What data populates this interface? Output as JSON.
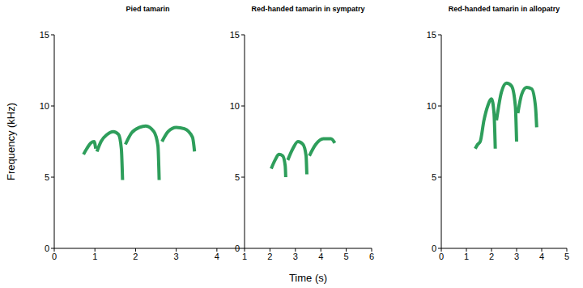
{
  "chart_data": [
    {
      "type": "line",
      "title": "Pied tamarin",
      "y_label": "Frequency (kHz)",
      "xlim": [
        0,
        4.6
      ],
      "xticks": [
        0,
        1,
        2,
        3,
        4
      ],
      "ylim": [
        0,
        15
      ],
      "yticks": [
        0,
        5,
        10,
        15
      ],
      "color": "#2e9e5b",
      "x": [
        0.72,
        0.8,
        0.9,
        0.98,
        1.02,
        1.035,
        1.05,
        1.15,
        1.3,
        1.45,
        1.58,
        1.65,
        1.68,
        1.71,
        1.75,
        1.9,
        2.1,
        2.25,
        2.45,
        2.55,
        2.58,
        2.61,
        2.65,
        2.8,
        3.0,
        3.2,
        3.4,
        3.45
      ],
      "values": [
        6.6,
        7.0,
        7.4,
        7.5,
        7.0,
        null,
        6.8,
        7.5,
        8.0,
        8.2,
        8.0,
        7.0,
        4.8,
        null,
        7.3,
        8.1,
        8.5,
        8.6,
        8.2,
        7.2,
        4.8,
        null,
        7.5,
        8.2,
        8.5,
        8.4,
        7.8,
        6.8
      ]
    },
    {
      "type": "line",
      "title": "Red-handed tamarin in sympatry",
      "x_label": "Time (s)",
      "xlim": [
        1,
        6
      ],
      "xticks": [
        1,
        2,
        3,
        4,
        5,
        6
      ],
      "ylim": [
        0,
        15
      ],
      "yticks": [
        0,
        5,
        10,
        15
      ],
      "color": "#2e9e5b",
      "x": [
        2.05,
        2.2,
        2.35,
        2.5,
        2.6,
        2.62,
        2.66,
        2.7,
        2.9,
        3.1,
        3.3,
        3.42,
        3.45,
        3.5,
        3.55,
        3.8,
        4.1,
        4.4,
        4.55
      ],
      "values": [
        5.6,
        6.2,
        6.6,
        6.5,
        5.8,
        5.0,
        null,
        6.2,
        7.0,
        7.5,
        7.3,
        6.5,
        5.2,
        null,
        6.5,
        7.3,
        7.7,
        7.7,
        7.4
      ]
    },
    {
      "type": "line",
      "title": "Red-handed tamarin in allopatry",
      "xlim": [
        0,
        5
      ],
      "xticks": [
        0,
        1,
        2,
        3,
        4,
        5
      ],
      "ylim": [
        0,
        15
      ],
      "yticks": [
        0,
        5,
        10,
        15
      ],
      "color": "#2e9e5b",
      "x": [
        1.35,
        1.45,
        1.55,
        1.7,
        1.85,
        2.0,
        2.1,
        2.15,
        2.18,
        2.2,
        2.4,
        2.6,
        2.8,
        2.95,
        3.0,
        3.02,
        3.05,
        3.2,
        3.4,
        3.6,
        3.75,
        3.8
      ],
      "values": [
        7.0,
        7.3,
        7.5,
        9.0,
        10.0,
        10.5,
        9.5,
        7.0,
        null,
        9.0,
        11.0,
        11.6,
        11.4,
        10.0,
        7.5,
        null,
        9.5,
        10.8,
        11.3,
        11.2,
        10.0,
        8.5
      ]
    }
  ]
}
